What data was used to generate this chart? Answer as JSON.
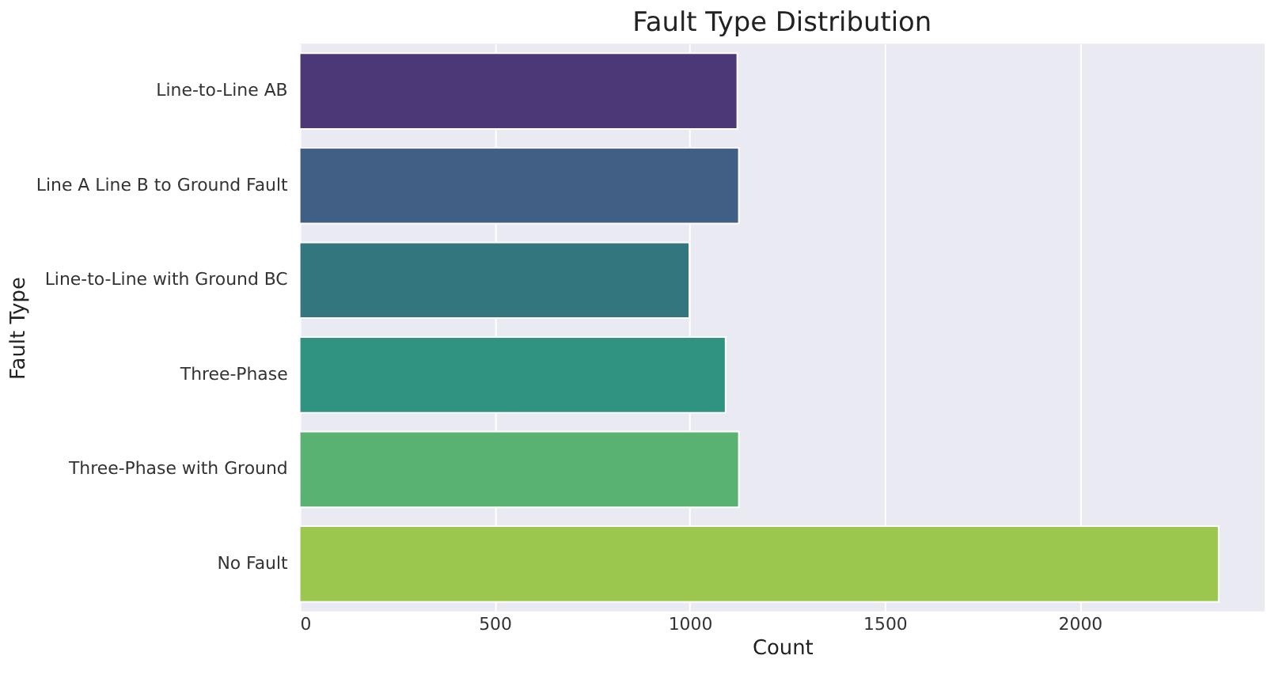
{
  "chart_data": {
    "type": "bar",
    "orientation": "horizontal",
    "title": "Fault Type Distribution",
    "xlabel": "Count",
    "ylabel": "Fault Type",
    "categories": [
      "Line-to-Line AB",
      "Line A Line B to Ground Fault",
      "Line-to-Line with Ground BC",
      "Three-Phase",
      "Three-Phase with Ground",
      "No Fault"
    ],
    "values": [
      1122,
      1126,
      999,
      1092,
      1126,
      2356
    ],
    "colors": [
      "#4b3877",
      "#415e85",
      "#34767e",
      "#309280",
      "#5ab272",
      "#9bc74f"
    ],
    "xlim": [
      0,
      2474
    ],
    "xticks": [
      0,
      500,
      1000,
      1500,
      2000
    ],
    "grid": "x",
    "legend": false
  }
}
